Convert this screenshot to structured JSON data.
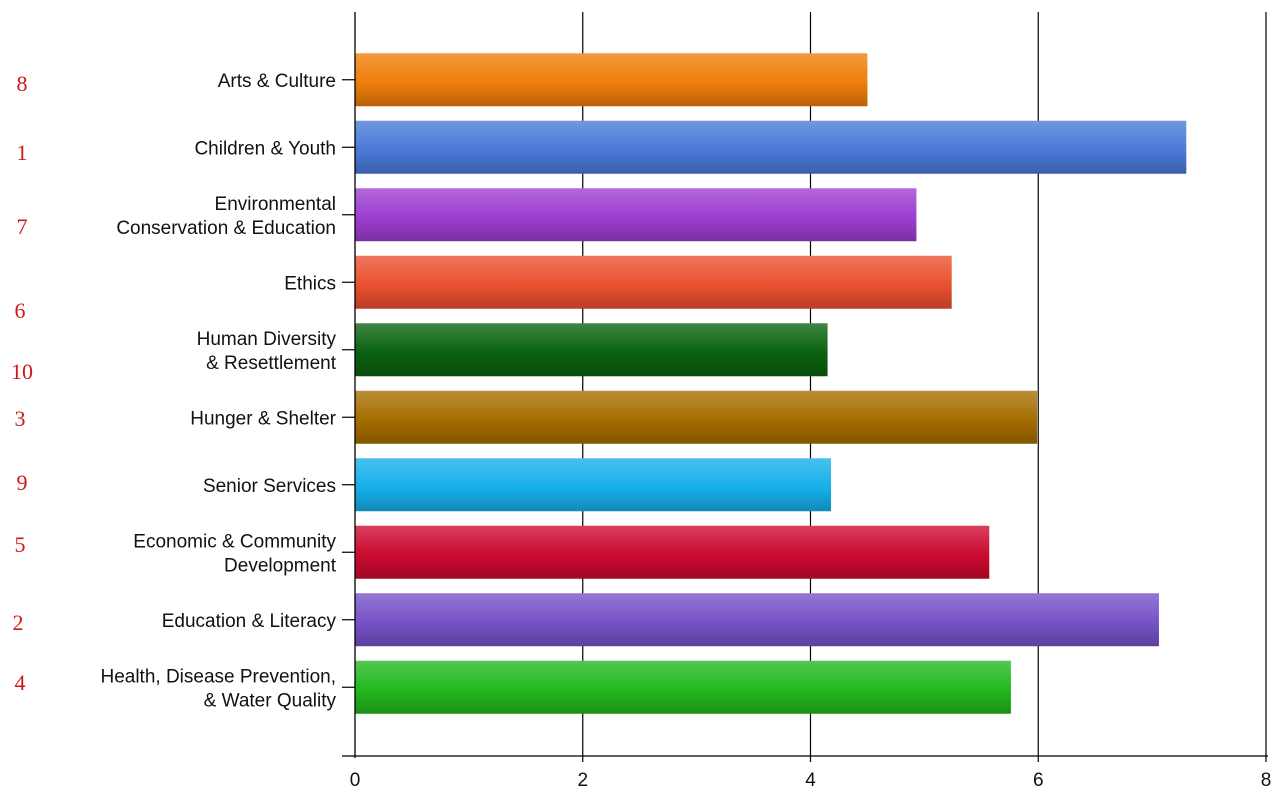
{
  "chart_data": {
    "type": "bar",
    "orientation": "horizontal",
    "categories": [
      [
        "Arts & Culture"
      ],
      [
        "Children & Youth"
      ],
      [
        "Environmental",
        "Conservation & Education"
      ],
      [
        "Ethics"
      ],
      [
        "Human Diversity",
        "& Resettlement"
      ],
      [
        "Hunger & Shelter"
      ],
      [
        "Senior Services"
      ],
      [
        "Economic & Community",
        "Development"
      ],
      [
        "Education & Literacy"
      ],
      [
        "Health, Disease Prevention,",
        "& Water Quality"
      ]
    ],
    "values": [
      4.5,
      7.3,
      4.93,
      5.24,
      4.15,
      5.99,
      4.18,
      5.57,
      7.06,
      5.76
    ],
    "ranks": [
      "8",
      "1",
      "7",
      "6",
      "10",
      "3",
      "9",
      "5",
      "2",
      "4"
    ],
    "xlim": [
      0,
      8
    ],
    "xticks": [
      "0",
      "2",
      "4",
      "6",
      "8"
    ],
    "grid": true,
    "colors": [
      "#ef7e0a",
      "#4a7ad8",
      "#9c3ed0",
      "#ea5030",
      "#0a6210",
      "#a66e00",
      "#16b0ea",
      "#cc0a30",
      "#7652c8",
      "#22b81e"
    ]
  }
}
